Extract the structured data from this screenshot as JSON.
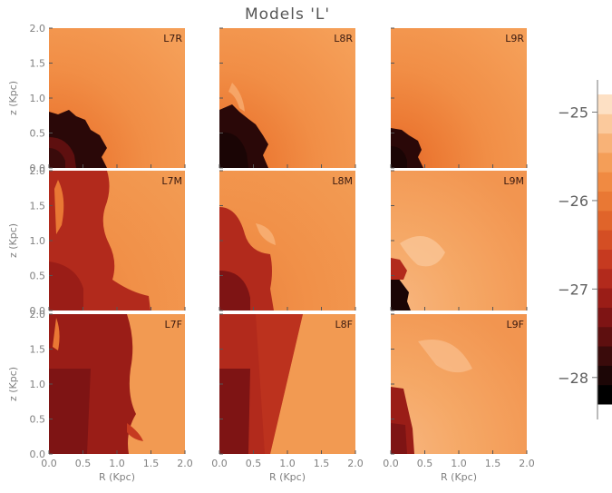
{
  "chart_data": {
    "type": "heatmap",
    "title": "Models 'L'",
    "xlabel": "R (Kpc)",
    "ylabel": "z (Kpc)",
    "xlim": [
      0,
      2
    ],
    "ylim": [
      0,
      2
    ],
    "xticks": [
      "0.0",
      "0.5",
      "1.0",
      "1.5",
      "2.0"
    ],
    "yticks": [
      "0.0",
      "0.5",
      "1.0",
      "1.5",
      "2.0"
    ],
    "grid": false,
    "panels": [
      {
        "name": "L7R",
        "row": 0,
        "col": 0
      },
      {
        "name": "L8R",
        "row": 0,
        "col": 1
      },
      {
        "name": "L9R",
        "row": 0,
        "col": 2
      },
      {
        "name": "L7M",
        "row": 1,
        "col": 0
      },
      {
        "name": "L8M",
        "row": 1,
        "col": 1
      },
      {
        "name": "L9M",
        "row": 1,
        "col": 2
      },
      {
        "name": "L7F",
        "row": 2,
        "col": 0
      },
      {
        "name": "L8F",
        "row": 2,
        "col": 1
      },
      {
        "name": "L9F",
        "row": 2,
        "col": 2
      }
    ],
    "colorbar": {
      "ticks": [
        -25,
        -26,
        -27,
        -28
      ],
      "tick_labels": [
        "−25",
        "−26",
        "−27",
        "−28"
      ],
      "range": [
        -28.3,
        -24.8
      ],
      "colors": [
        "#000000",
        "#1c0606",
        "#3a0b0b",
        "#5e0f0f",
        "#7e1414",
        "#9a1d17",
        "#b22a1c",
        "#c63a20",
        "#d44e24",
        "#e0642a",
        "#e97834",
        "#f08a42",
        "#f49e58",
        "#f8b277",
        "#fbc99c",
        "#fde0c4"
      ]
    }
  }
}
